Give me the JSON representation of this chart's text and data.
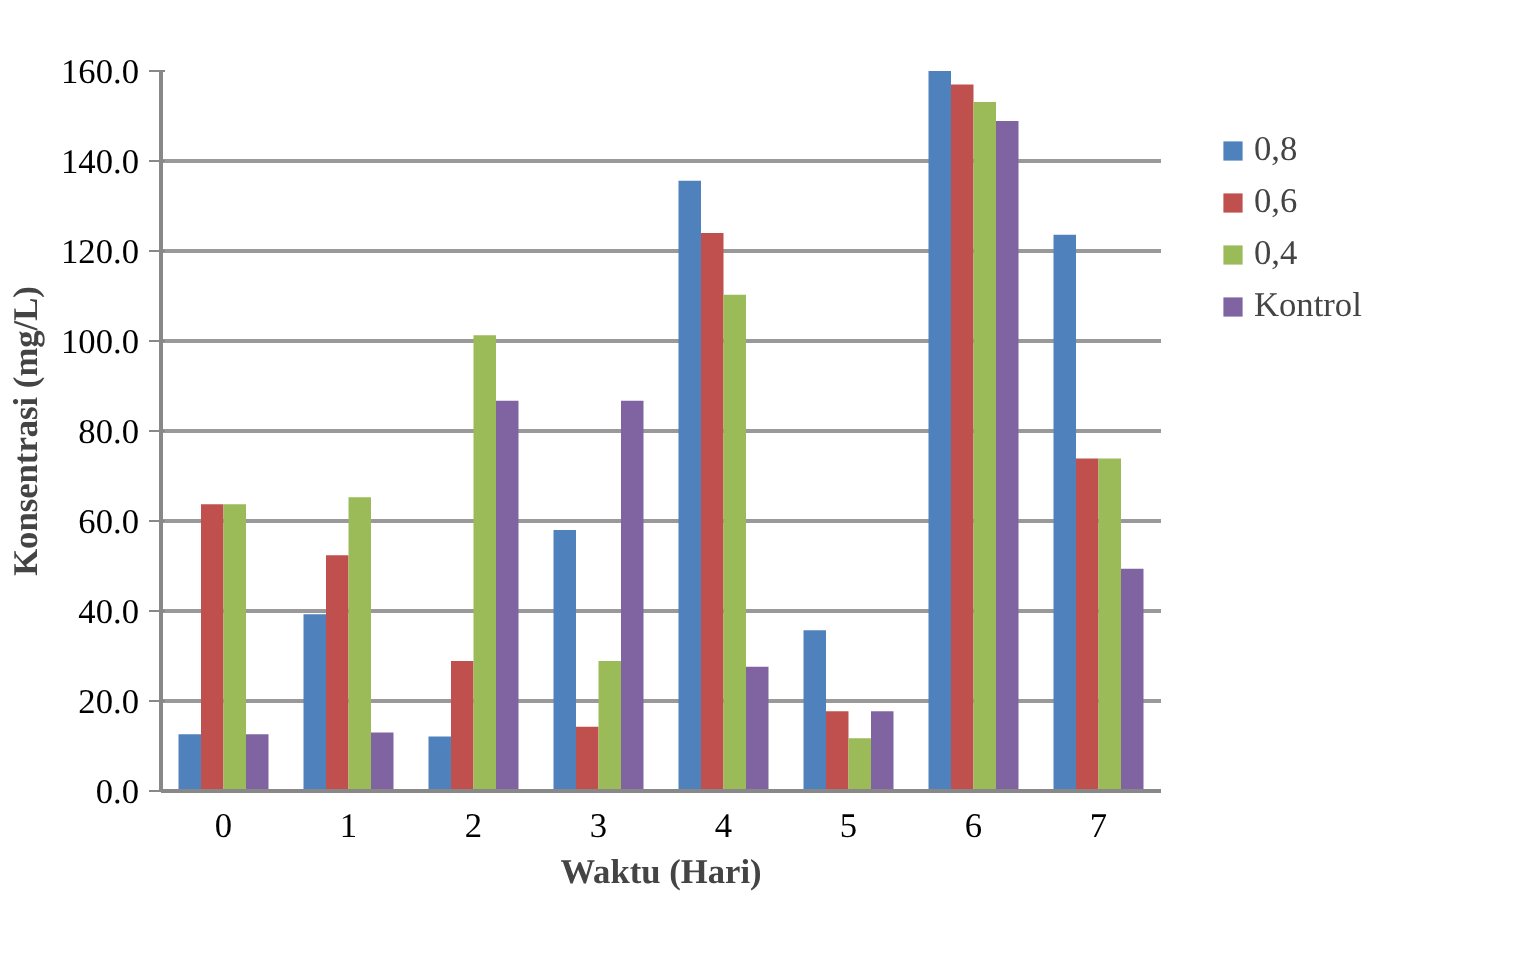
{
  "chart_data": {
    "type": "bar",
    "xlabel": "Waktu (Hari)",
    "ylabel": "Konsentrasi (mg/L)",
    "categories": [
      "0",
      "1",
      "2",
      "3",
      "4",
      "5",
      "6",
      "7"
    ],
    "series": [
      {
        "name": "0,8",
        "color": "#4f81bd",
        "values": [
          12.6,
          39.3,
          12.1,
          58.0,
          135.6,
          35.7,
          160.0,
          123.6
        ]
      },
      {
        "name": "0,6",
        "color": "#c0504d",
        "values": [
          63.7,
          52.4,
          28.9,
          14.3,
          124.0,
          17.7,
          157.0,
          73.9
        ]
      },
      {
        "name": "0,4",
        "color": "#9bbb59",
        "values": [
          63.7,
          65.3,
          101.3,
          28.9,
          110.3,
          11.7,
          153.1,
          73.9
        ]
      },
      {
        "name": "Kontrol",
        "color": "#8064a2",
        "values": [
          12.6,
          13.0,
          86.7,
          86.7,
          27.6,
          17.7,
          148.9,
          49.4
        ]
      }
    ],
    "ylim": [
      0,
      160
    ],
    "yticks": [
      {
        "value": 0,
        "label": "0.0"
      },
      {
        "value": 20,
        "label": "20.0"
      },
      {
        "value": 40,
        "label": "40.0"
      },
      {
        "value": 60,
        "label": "60.0"
      },
      {
        "value": 80,
        "label": "80.0"
      },
      {
        "value": 100,
        "label": "100.0"
      },
      {
        "value": 120,
        "label": "120.0"
      },
      {
        "value": 140,
        "label": "140.0"
      },
      {
        "value": 160,
        "label": "160.0"
      }
    ],
    "grid": "y",
    "legend": "right"
  }
}
